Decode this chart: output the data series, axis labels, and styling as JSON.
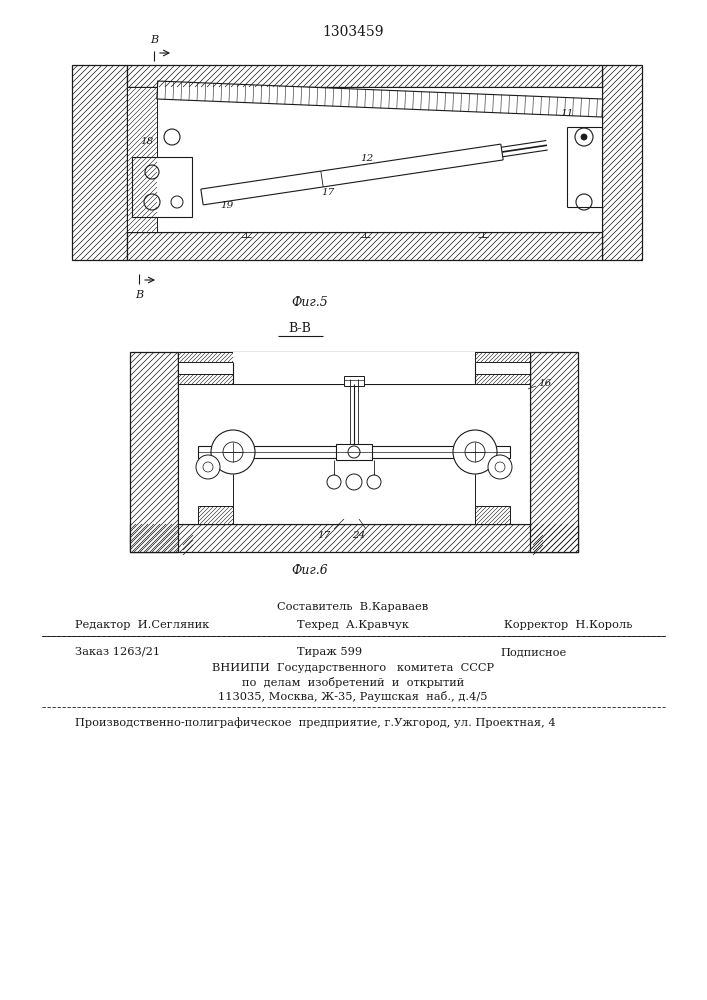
{
  "patent_number": "1303459",
  "fig5_caption": "Фиг.5",
  "fig6_caption": "Фиг.6",
  "section_label": "B-B",
  "footer_line1": "Составитель  В.Караваев",
  "footer_line2_left": "Редактор  И.Сегляник",
  "footer_line2_mid": "Техред  А.Кравчук",
  "footer_line2_right": "Корректор  Н.Король",
  "footer_line3_left": "Заказ 1263/21",
  "footer_line3_mid": "Тираж 599",
  "footer_line3_right": "Подписное",
  "footer_line4": "ВНИИПИ  Государственного   комитета  СССР",
  "footer_line5": "по  делам  изобретений  и  открытий",
  "footer_line6": "113035, Москва, Ж-35, Раушская  наб., д.4/5",
  "footer_line7": "Производственно-полиграфическое  предприятие, г.Ужгород, ул. Проектная, 4",
  "bg_color": "#ffffff",
  "line_color": "#1a1a1a"
}
